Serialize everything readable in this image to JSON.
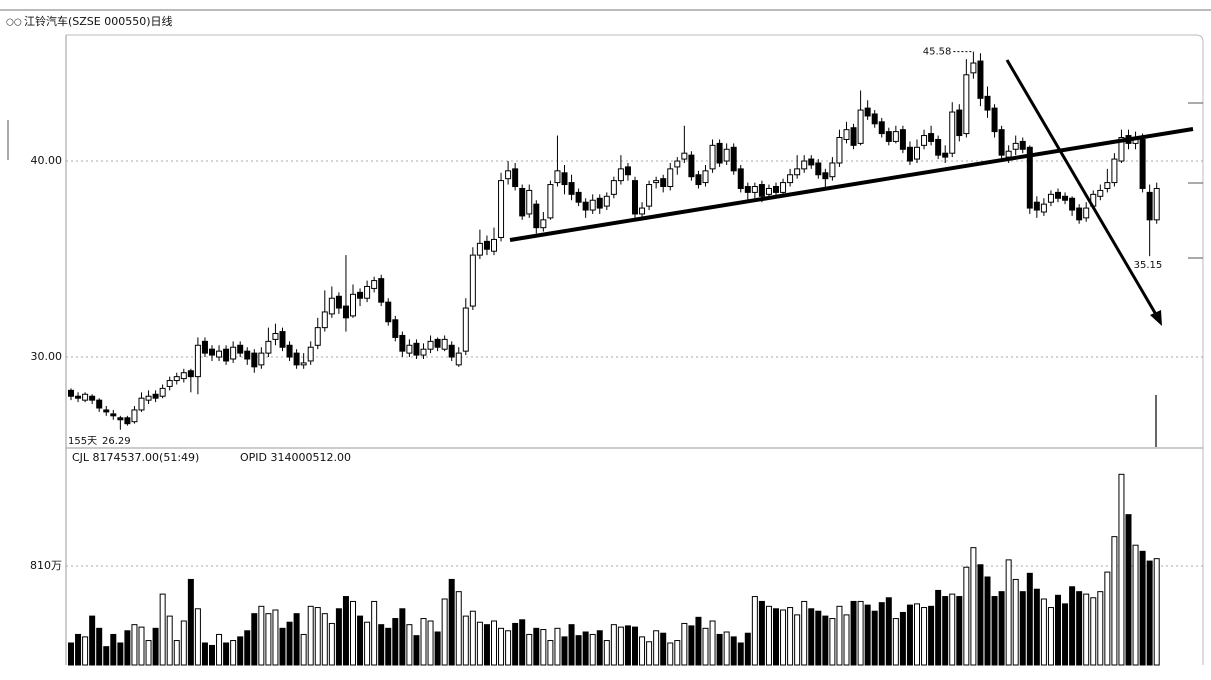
{
  "chart_data": {
    "type": "candlestick",
    "title": "江铃汽车(SZSE 000550)日线",
    "period_label": "155天",
    "volume_header": "CJL 8174537.00(51:49)",
    "volume_indicator": "OPID  314000512.00",
    "up_color": "#ffffff",
    "down_color": "#000000",
    "grid": true,
    "ylim": [
      25.41,
      46.43
    ],
    "yticks": [
      {
        "value": 40,
        "label": "40.00"
      },
      {
        "value": 30,
        "label": "30.00"
      }
    ],
    "volume_ylim": [
      0,
      1718
    ],
    "volume_yticks": [
      {
        "value": 810,
        "label": "810万"
      }
    ],
    "max_label_index": 128,
    "min_label_index": 153,
    "start_label_index": 7,
    "open": [
      28.3,
      28.0,
      27.8,
      28.0,
      27.8,
      27.3,
      27.1,
      26.9,
      26.9,
      26.7,
      27.3,
      27.8,
      28.1,
      28.0,
      28.5,
      28.8,
      28.9,
      29.3,
      29.0,
      30.8,
      30.4,
      30.0,
      30.4,
      29.9,
      30.6,
      30.3,
      30.2,
      29.6,
      30.2,
      30.9,
      31.3,
      30.6,
      30.2,
      29.6,
      29.8,
      30.6,
      31.5,
      32.2,
      33.1,
      32.6,
      32.1,
      33.3,
      33.0,
      33.5,
      34.0,
      32.8,
      31.9,
      31.1,
      30.2,
      30.7,
      30.1,
      30.4,
      30.9,
      30.4,
      30.6,
      29.6,
      30.3,
      32.6,
      35.2,
      35.9,
      35.4,
      36.1,
      39.1,
      39.6,
      38.6,
      37.3,
      37.8,
      36.6,
      37.1,
      38.9,
      39.4,
      38.9,
      38.4,
      37.9,
      37.5,
      38.1,
      37.7,
      38.3,
      39.0,
      39.7,
      39.0,
      37.3,
      37.7,
      38.9,
      39.1,
      38.7,
      39.7,
      40.1,
      40.3,
      39.3,
      38.9,
      39.6,
      40.9,
      40.0,
      40.7,
      39.6,
      38.7,
      38.4,
      38.8,
      38.3,
      38.7,
      38.4,
      38.9,
      39.3,
      39.6,
      40.1,
      39.9,
      39.4,
      39.2,
      39.9,
      41.1,
      41.7,
      40.9,
      42.7,
      42.4,
      42.0,
      41.5,
      41.0,
      41.6,
      40.7,
      40.1,
      40.8,
      41.4,
      41.1,
      40.4,
      40.4,
      42.6,
      41.4,
      44.5,
      45.1,
      43.3,
      42.7,
      41.6,
      40.2,
      40.6,
      41.0,
      40.7,
      37.9,
      37.4,
      37.9,
      38.4,
      38.2,
      38.1,
      37.6,
      37.1,
      37.7,
      38.2,
      38.6,
      38.9,
      40.0,
      41.3,
      40.9,
      41.1,
      38.4,
      37.0
    ],
    "high": [
      28.4,
      28.2,
      28.2,
      28.1,
      27.9,
      27.5,
      27.3,
      27.0,
      27.0,
      27.5,
      28.2,
      28.3,
      28.3,
      28.6,
      29.0,
      29.2,
      29.4,
      29.4,
      31.0,
      31.0,
      30.6,
      30.6,
      30.6,
      30.8,
      30.8,
      30.5,
      30.4,
      30.5,
      31.5,
      31.7,
      31.5,
      30.8,
      30.4,
      30.2,
      30.8,
      32.0,
      33.4,
      33.6,
      33.3,
      35.2,
      33.7,
      33.5,
      33.9,
      34.1,
      34.2,
      33.0,
      32.1,
      31.3,
      30.9,
      30.9,
      30.7,
      31.1,
      31.0,
      31.1,
      30.8,
      30.5,
      33.0,
      35.6,
      36.5,
      36.2,
      36.6,
      39.4,
      40.0,
      39.9,
      38.8,
      38.8,
      38.0,
      37.4,
      39.0,
      41.3,
      39.8,
      39.3,
      38.6,
      38.1,
      38.3,
      38.3,
      38.4,
      39.2,
      40.3,
      39.9,
      39.2,
      37.9,
      39.0,
      39.2,
      39.3,
      39.9,
      40.2,
      41.8,
      40.5,
      39.5,
      39.8,
      41.1,
      41.1,
      40.9,
      40.9,
      39.8,
      38.9,
      38.9,
      39.0,
      38.8,
      38.9,
      39.1,
      39.6,
      40.3,
      40.3,
      40.3,
      40.1,
      39.6,
      40.2,
      41.6,
      42.0,
      41.9,
      43.6,
      43.1,
      42.6,
      42.2,
      41.7,
      41.8,
      41.8,
      41.0,
      41.1,
      41.6,
      41.8,
      41.3,
      40.8,
      43.0,
      42.9,
      45.2,
      45.58,
      45.5,
      43.8,
      42.9,
      41.8,
      40.8,
      41.3,
      41.2,
      40.8,
      38.2,
      38.1,
      38.5,
      38.6,
      38.4,
      38.2,
      37.8,
      37.9,
      38.5,
      38.8,
      39.6,
      40.4,
      41.6,
      41.6,
      41.5,
      41.4,
      38.8,
      38.9
    ],
    "low": [
      27.8,
      27.7,
      27.7,
      27.6,
      27.2,
      27.0,
      26.8,
      26.29,
      26.5,
      26.6,
      27.2,
      27.6,
      27.7,
      27.9,
      28.3,
      28.6,
      28.7,
      28.2,
      28.1,
      30.0,
      29.8,
      29.8,
      29.6,
      29.7,
      30.0,
      29.6,
      29.2,
      29.4,
      30.0,
      30.6,
      30.3,
      29.8,
      29.4,
      29.4,
      29.6,
      30.4,
      31.3,
      32.0,
      32.2,
      31.3,
      32.0,
      32.6,
      32.8,
      33.3,
      32.6,
      31.6,
      30.8,
      30.0,
      30.0,
      29.9,
      29.9,
      30.2,
      30.3,
      30.3,
      29.8,
      29.5,
      30.1,
      32.4,
      35.0,
      35.2,
      35.2,
      35.9,
      38.8,
      38.5,
      37.0,
      37.1,
      36.3,
      36.4,
      37.0,
      38.7,
      38.3,
      38.0,
      37.7,
      37.1,
      37.3,
      37.3,
      37.5,
      38.1,
      38.8,
      39.0,
      37.1,
      37.0,
      37.5,
      38.6,
      38.4,
      38.5,
      39.3,
      39.9,
      39.0,
      38.6,
      38.7,
      39.4,
      39.7,
      39.8,
      39.3,
      38.4,
      38.0,
      38.1,
      37.9,
      38.1,
      38.1,
      38.2,
      38.7,
      39.1,
      39.4,
      39.6,
      39.1,
      38.6,
      39.0,
      39.7,
      40.9,
      40.6,
      40.8,
      42.1,
      41.7,
      41.2,
      40.8,
      40.9,
      40.4,
      39.8,
      39.9,
      40.6,
      40.8,
      40.1,
      39.9,
      40.2,
      41.0,
      41.2,
      44.2,
      42.8,
      42.2,
      41.2,
      40.0,
      39.9,
      40.3,
      40.4,
      37.3,
      37.1,
      37.2,
      37.7,
      37.9,
      37.8,
      37.2,
      36.8,
      36.9,
      37.6,
      38.0,
      38.4,
      38.7,
      39.9,
      40.6,
      40.6,
      38.4,
      35.15,
      36.8
    ],
    "close": [
      28.0,
      27.9,
      28.1,
      27.8,
      27.4,
      27.2,
      27.0,
      26.8,
      26.6,
      27.3,
      27.9,
      28.0,
      27.9,
      28.4,
      28.8,
      29.0,
      29.2,
      29.0,
      30.6,
      30.2,
      30.1,
      30.3,
      29.8,
      30.5,
      30.2,
      29.9,
      29.5,
      30.2,
      30.8,
      31.2,
      30.5,
      30.0,
      29.6,
      29.7,
      30.5,
      31.5,
      32.3,
      33.0,
      32.5,
      32.0,
      33.2,
      33.0,
      33.6,
      33.9,
      32.8,
      31.8,
      31.0,
      30.3,
      30.6,
      30.1,
      30.4,
      30.8,
      30.5,
      30.9,
      30.0,
      30.2,
      32.5,
      35.2,
      35.8,
      35.5,
      36.0,
      39.0,
      39.5,
      38.7,
      37.2,
      38.5,
      36.6,
      37.0,
      38.8,
      39.5,
      38.8,
      38.3,
      37.9,
      37.5,
      38.0,
      37.6,
      38.2,
      39.0,
      39.6,
      39.3,
      37.3,
      37.6,
      38.8,
      39.0,
      38.7,
      39.6,
      40.0,
      40.4,
      39.2,
      38.8,
      39.5,
      40.8,
      39.9,
      40.6,
      39.5,
      38.6,
      38.4,
      38.7,
      38.2,
      38.6,
      38.4,
      38.9,
      39.3,
      39.6,
      40.0,
      39.8,
      39.3,
      39.1,
      39.9,
      41.2,
      41.6,
      40.8,
      42.6,
      42.3,
      41.9,
      41.4,
      41.0,
      41.5,
      40.6,
      40.0,
      40.7,
      41.3,
      41.0,
      40.3,
      40.2,
      42.5,
      41.3,
      44.4,
      45.0,
      43.2,
      42.6,
      41.5,
      40.3,
      40.5,
      40.9,
      40.6,
      37.6,
      37.5,
      37.8,
      38.3,
      38.1,
      38.0,
      37.5,
      37.0,
      37.6,
      38.3,
      38.5,
      38.9,
      40.1,
      41.2,
      40.9,
      41.2,
      38.6,
      37.0,
      38.6
    ],
    "volume": [
      180,
      250,
      230,
      400,
      300,
      150,
      250,
      180,
      280,
      330,
      310,
      200,
      300,
      580,
      400,
      200,
      360,
      700,
      460,
      180,
      160,
      250,
      180,
      200,
      230,
      280,
      420,
      480,
      420,
      450,
      300,
      350,
      420,
      250,
      480,
      470,
      420,
      340,
      460,
      560,
      520,
      400,
      350,
      520,
      330,
      300,
      380,
      460,
      330,
      240,
      380,
      360,
      270,
      540,
      700,
      600,
      400,
      440,
      350,
      330,
      360,
      300,
      280,
      340,
      370,
      250,
      300,
      290,
      200,
      300,
      230,
      330,
      240,
      270,
      250,
      280,
      200,
      330,
      310,
      320,
      310,
      230,
      190,
      280,
      260,
      180,
      200,
      340,
      320,
      390,
      300,
      360,
      250,
      270,
      230,
      180,
      260,
      560,
      520,
      480,
      460,
      450,
      470,
      410,
      520,
      460,
      440,
      400,
      380,
      480,
      410,
      520,
      520,
      490,
      440,
      510,
      550,
      380,
      430,
      490,
      500,
      470,
      480,
      610,
      560,
      580,
      560,
      800,
      960,
      820,
      720,
      560,
      600,
      860,
      700,
      600,
      750,
      620,
      540,
      470,
      570,
      500,
      640,
      600,
      580,
      550,
      600,
      760,
      1050,
      1560,
      1230,
      980,
      930,
      850,
      870
    ]
  }
}
